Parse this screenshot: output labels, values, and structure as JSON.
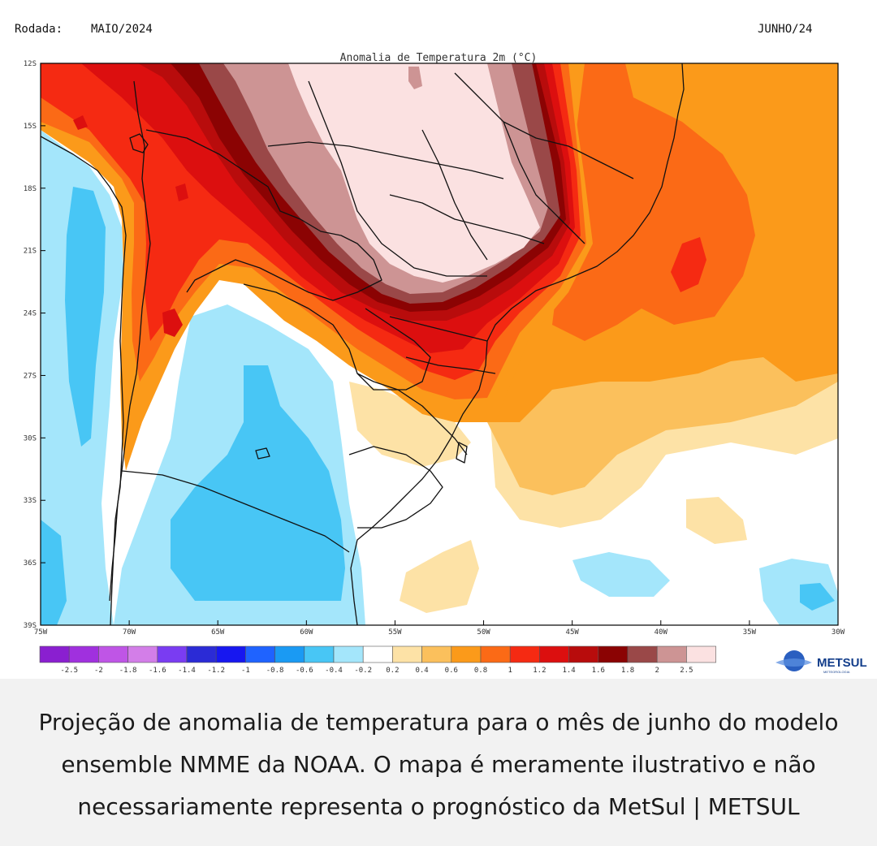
{
  "header": {
    "run_label": "Rodada:",
    "run_value": "MAIO/2024",
    "target_month": "JUNHO/24"
  },
  "map": {
    "title": "Anomalia de Temperatura 2m (°C)",
    "lat_labels": [
      "12S",
      "15S",
      "18S",
      "21S",
      "24S",
      "27S",
      "30S",
      "33S",
      "36S",
      "39S"
    ],
    "lon_labels": [
      "75W",
      "70W",
      "65W",
      "60W",
      "55W",
      "50W",
      "45W",
      "40W",
      "35W",
      "30W"
    ]
  },
  "colorbar": {
    "colors": [
      "#8a1fd0",
      "#a030de",
      "#bf55e6",
      "#d37ee8",
      "#7a3cf2",
      "#2b2bd6",
      "#1717f0",
      "#1f63ff",
      "#1a9af3",
      "#48c6f5",
      "#a4e6fb",
      "#ffffff",
      "#fde2a6",
      "#fbc05c",
      "#fb9a1a",
      "#fb6a16",
      "#f52a12",
      "#dc0f0f",
      "#b80c0c",
      "#8b0303",
      "#9a4848",
      "#cd9494",
      "#fbe1e1"
    ],
    "tick_labels": [
      "-2.5",
      "-2",
      "-1.8",
      "-1.6",
      "-1.4",
      "-1.2",
      "-1",
      "-0.8",
      "-0.6",
      "-0.4",
      "-0.2",
      "0.2",
      "0.4",
      "0.6",
      "0.8",
      "1",
      "1.2",
      "1.4",
      "1.6",
      "1.8",
      "2",
      "2.5"
    ]
  },
  "brand": {
    "name": "METSUL",
    "tagline": "METEOROLOGIA"
  },
  "caption": {
    "text": "Projeção de anomalia de temperatura para o mês de junho do modelo ensemble NMME da NOAA. O mapa é meramente ilustrativo e não necessariamente representa o prognóstico da MetSul | METSUL"
  }
}
